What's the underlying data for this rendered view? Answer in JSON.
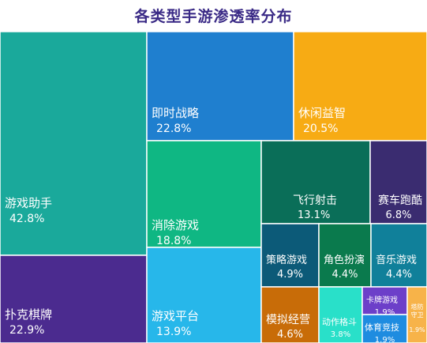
{
  "chart_data": {
    "type": "treemap",
    "title": "各类型手游渗透率分布",
    "cells": [
      {
        "name": "游戏助手",
        "value": "42.8%",
        "color": "#1aa99b"
      },
      {
        "name": "扑克棋牌",
        "value": "22.9%",
        "color": "#4b2b8f"
      },
      {
        "name": "即时战略",
        "value": "22.8%",
        "color": "#1f7fcf"
      },
      {
        "name": "休闲益智",
        "value": "20.5%",
        "color": "#f7ab14"
      },
      {
        "name": "消除游戏",
        "value": "18.8%",
        "color": "#0fb783"
      },
      {
        "name": "游戏平台",
        "value": "13.9%",
        "color": "#27b7ea"
      },
      {
        "name": "飞行射击",
        "value": "13.1%",
        "color": "#0a6e58"
      },
      {
        "name": "赛车跑酷",
        "value": "6.8%",
        "color": "#3a2c70"
      },
      {
        "name": "策略游戏",
        "value": "4.9%",
        "color": "#0c5a78"
      },
      {
        "name": "角色扮演",
        "value": "4.4%",
        "color": "#0a7a4d"
      },
      {
        "name": "音乐游戏",
        "value": "4.4%",
        "color": "#10809a"
      },
      {
        "name": "模拟经营",
        "value": "4.6%",
        "color": "#c86c08"
      },
      {
        "name": "动作格斗",
        "value": "3.8%",
        "color": "#29e0c9"
      },
      {
        "name": "卡牌游戏",
        "value": "1.9%",
        "color": "#6c3fc9"
      },
      {
        "name": "体育竞技",
        "value": "1.9%",
        "color": "#1e8ce0"
      },
      {
        "name": "塔防守卫",
        "value": "1.9%",
        "color": "#f7b349"
      }
    ]
  }
}
